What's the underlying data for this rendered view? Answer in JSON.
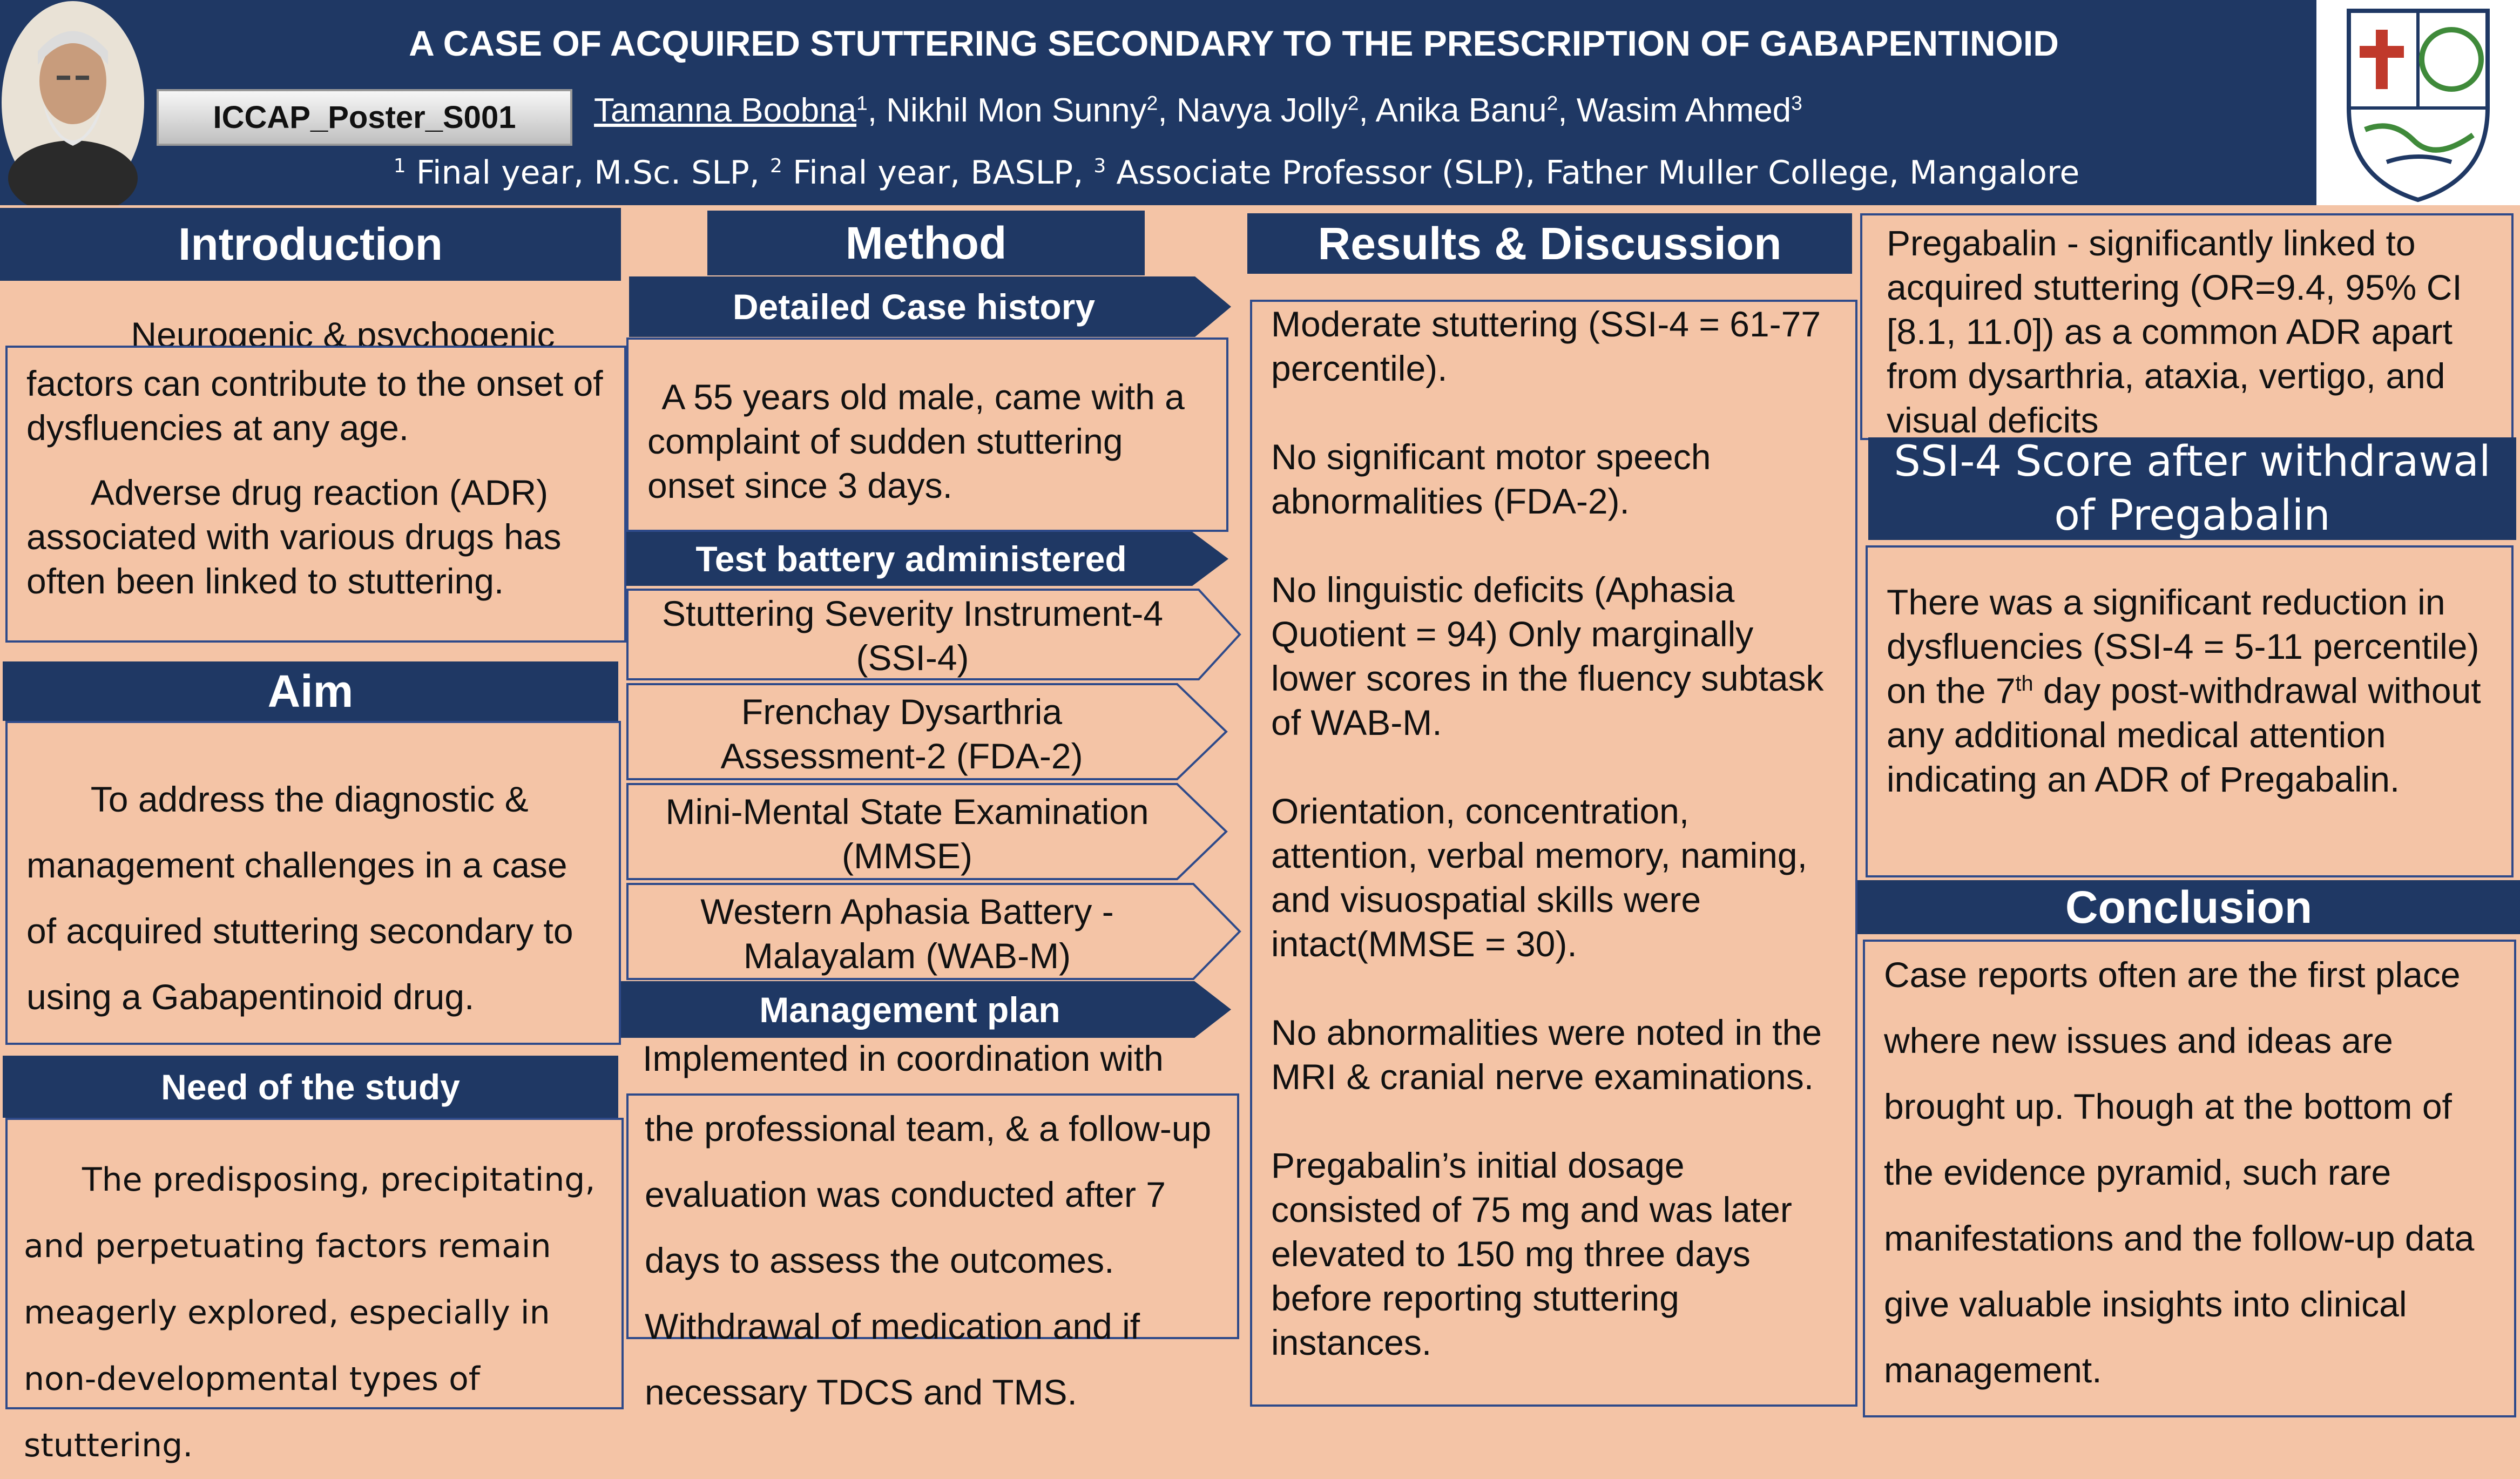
{
  "header": {
    "title": "A CASE OF ACQUIRED STUTTERING SECONDARY TO THE PRESCRIPTION OF GABAPENTINOID",
    "poster_id": "ICCAP_Poster_S001",
    "authors": [
      {
        "name": "Tamanna Boobna",
        "sup": "1"
      },
      {
        "name": "Nikhil Mon Sunny",
        "sup": "2"
      },
      {
        "name": "Navya Jolly",
        "sup": "2"
      },
      {
        "name": "Anika Banu",
        "sup": "2"
      },
      {
        "name": "Wasim Ahmed",
        "sup": "3"
      }
    ],
    "aff_sup1": "1",
    "aff_text1": " Final year, M.Sc. SLP, ",
    "aff_sup2": "2",
    "aff_text2": " Final year, BASLP, ",
    "aff_sup3": "3",
    "aff_text3": " Associate Professor (SLP), Father Muller College, Mangalore"
  },
  "introduction": {
    "heading": "Introduction",
    "p1_first": "Neurogenic & psychogenic",
    "p1_rest": "factors can contribute to the onset of dysfluencies at any age.",
    "p2": "Adverse drug reaction (ADR) associated with various drugs has often been linked to stuttering."
  },
  "aim": {
    "heading": "Aim",
    "text": "To address the diagnostic & management challenges in a case of acquired stuttering secondary to using a Gabapentinoid drug."
  },
  "need": {
    "heading": "Need of the study",
    "text": "The predisposing, precipitating, and perpetuating factors remain meagerly explored, especially in non-developmental types of stuttering."
  },
  "method": {
    "heading": "Method",
    "case_history_heading": "Detailed Case history",
    "case_history_text": "A 55 years old male, came with a complaint of sudden stuttering onset since 3 days.",
    "tests_heading": "Test battery administered",
    "tests": [
      "Stuttering Severity Instrument-4 (SSI-4)",
      "Frenchay Dysarthria Assessment-2 (FDA-2)",
      "Mini-Mental State Examination (MMSE)",
      "Western Aphasia Battery - Malayalam (WAB-M)"
    ],
    "management_heading": "Management plan",
    "management_first": "Implemented in coordination with",
    "management_rest": "the professional team, & a follow-up evaluation was conducted after 7 days to assess the outcomes. Withdrawal of medication and if necessary TDCS and TMS."
  },
  "results": {
    "heading": "Results & Discussion",
    "paragraphs": [
      "Moderate stuttering (SSI-4 = 61-77 percentile).",
      "No significant motor speech abnormalities (FDA-2).",
      "No linguistic deficits (Aphasia Quotient = 94) Only marginally lower scores in the fluency subtask of WAB-M.",
      "Orientation, concentration, attention, verbal memory, naming, and visuospatial skills were intact(MMSE = 30).",
      "No abnormalities were noted in the MRI & cranial nerve examinations.",
      "Pregabalin’s initial dosage consisted of 75 mg and was later elevated to 150 mg three days before reporting stuttering instances."
    ]
  },
  "pregabalin": {
    "text": "Pregabalin - significantly linked to acquired stuttering (OR=9.4, 95% CI [8.1, 11.0]) as a common ADR apart from dysarthria, ataxia, vertigo, and visual deficits"
  },
  "ssi": {
    "heading": "SSI-4 Score after withdrawal of Pregabalin",
    "text_a": "There was a significant reduction in dysfluencies (SSI-4 = 5-11 percentile) on the 7",
    "text_sup": "th",
    "text_b": " day post-withdrawal without any additional medical attention indicating an ADR of Pregabalin."
  },
  "conclusion": {
    "heading": "Conclusion",
    "text": "Case reports often are the first place where new issues and ideas are brought up. Though at the bottom of the evidence pyramid, such rare manifestations and the follow-up data give valuable insights into clinical management."
  },
  "colors": {
    "navy": "#1f3864",
    "peach": "#f4c4a6",
    "border": "#2e4a8a",
    "logo_red": "#c0392b",
    "logo_green": "#3f8a3a"
  }
}
